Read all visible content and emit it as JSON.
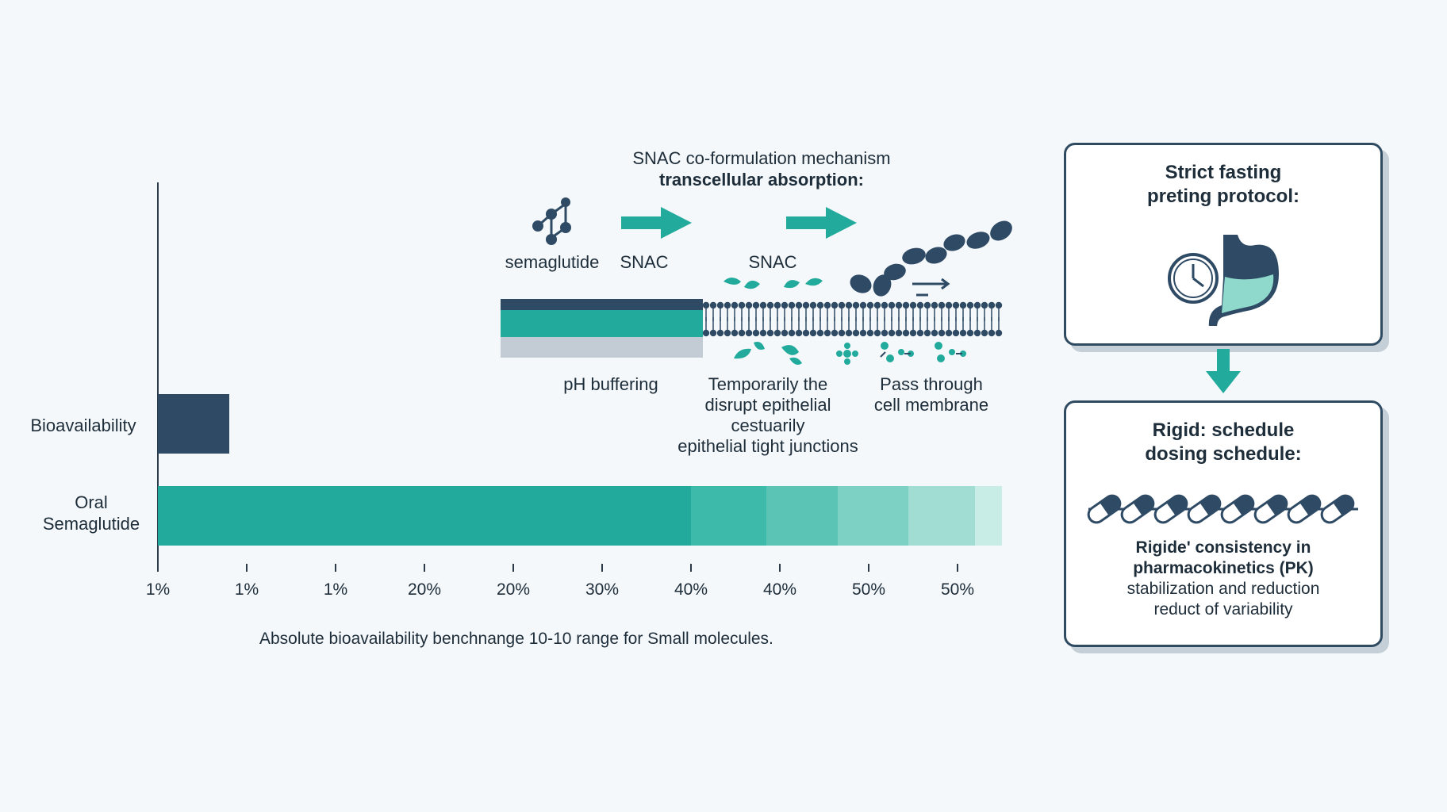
{
  "chart_data": {
    "type": "bar",
    "orientation": "horizontal",
    "categories": [
      "Bioavailability",
      "Oral\nSemaglutide"
    ],
    "category_lines": [
      [
        "Bioavailability"
      ],
      [
        "Oral",
        "Semaglutide"
      ]
    ],
    "tick_labels": [
      "1%",
      "1%",
      "1%",
      "20%",
      "20%",
      "30%",
      "40%",
      "40%",
      "50%",
      "50%"
    ],
    "bars": [
      {
        "category": "Bioavailability",
        "tick_span": 0.8,
        "color": "#2e4a64"
      },
      {
        "category": "Oral Semaglutide",
        "tick_span": 9.6,
        "color": "#22ab9d",
        "fade_segments": [
          {
            "tick_span": 6.0,
            "color": "#22ab9d"
          },
          {
            "tick_span": 0.85,
            "color": "#3dbaa9"
          },
          {
            "tick_span": 0.8,
            "color": "#5cc4b5"
          },
          {
            "tick_span": 0.8,
            "color": "#7dd1c4"
          },
          {
            "tick_span": 0.75,
            "color": "#a2ddd4"
          },
          {
            "tick_span": 0.3,
            "color": "#c8ece6"
          }
        ]
      }
    ],
    "footnote": "Absolute bioavailability benchnange 10-10 range for Small molecules."
  },
  "mechanism": {
    "title_line1": "SNAC co-formulation mechanism",
    "title_line2": "transcellular absorption:",
    "label_semaglutide": "semaglutide",
    "label_snac1": "SNAC",
    "label_snac2": "SNAC",
    "step1": "pH buffering",
    "step2_l1": "Temporarily the",
    "step2_l2": "disrupt epithelial",
    "step2_l3": "cestuarily",
    "step2_l4": "epithelial tight junctions",
    "step3_l1": "Pass through",
    "step3_l2": "cell membrane"
  },
  "panel_fasting": {
    "title_l1": "Strict fasting",
    "title_l2": "preting protocol:",
    "icon": "clock-stomach-icon"
  },
  "panel_dosing": {
    "title_l1": "Rigid: schedule",
    "title_l2": "dosing schedule:",
    "icon": "pill-chain-icon",
    "text_l1": "Rigide' consistency in",
    "text_l2": "pharmacokinetics (PK)",
    "text_l3": "stabilization and reduction",
    "text_l4": "reduct of variability"
  },
  "colors": {
    "navy": "#2e4a64",
    "teal": "#22ab9d",
    "light_teal": "#8fd8cc",
    "grey": "#c3ccd4"
  }
}
